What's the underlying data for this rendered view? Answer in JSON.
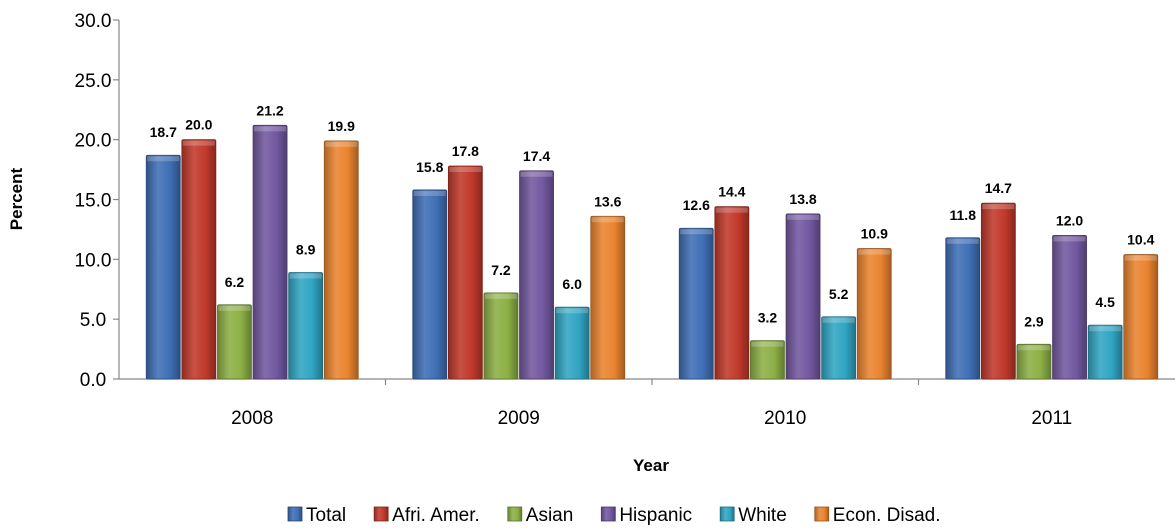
{
  "chart_data": {
    "type": "bar",
    "title": "",
    "xlabel": "Year",
    "ylabel": "Percent",
    "ylim": [
      0,
      30
    ],
    "yticks": [
      "0.0",
      "5.0",
      "10.0",
      "15.0",
      "20.0",
      "25.0",
      "30.0"
    ],
    "categories": [
      "2008",
      "2009",
      "2010",
      "2011"
    ],
    "series": [
      {
        "name": "Total",
        "color": "#3f6fb5",
        "values": [
          18.7,
          15.8,
          12.6,
          11.8
        ]
      },
      {
        "name": "Afri. Amer.",
        "color": "#c0392b",
        "values": [
          20.0,
          17.8,
          14.4,
          14.7
        ]
      },
      {
        "name": "Asian",
        "color": "#8cb045",
        "values": [
          6.2,
          7.2,
          3.2,
          2.9
        ]
      },
      {
        "name": "Hispanic",
        "color": "#7258a0",
        "values": [
          21.2,
          17.4,
          13.8,
          12.0
        ]
      },
      {
        "name": "White",
        "color": "#30a5c3",
        "values": [
          8.9,
          6.0,
          5.2,
          4.5
        ]
      },
      {
        "name": "Econ. Disad.",
        "color": "#e9842f",
        "values": [
          19.9,
          13.6,
          10.9,
          10.4
        ]
      }
    ],
    "legend_position": "bottom",
    "grid": false
  }
}
